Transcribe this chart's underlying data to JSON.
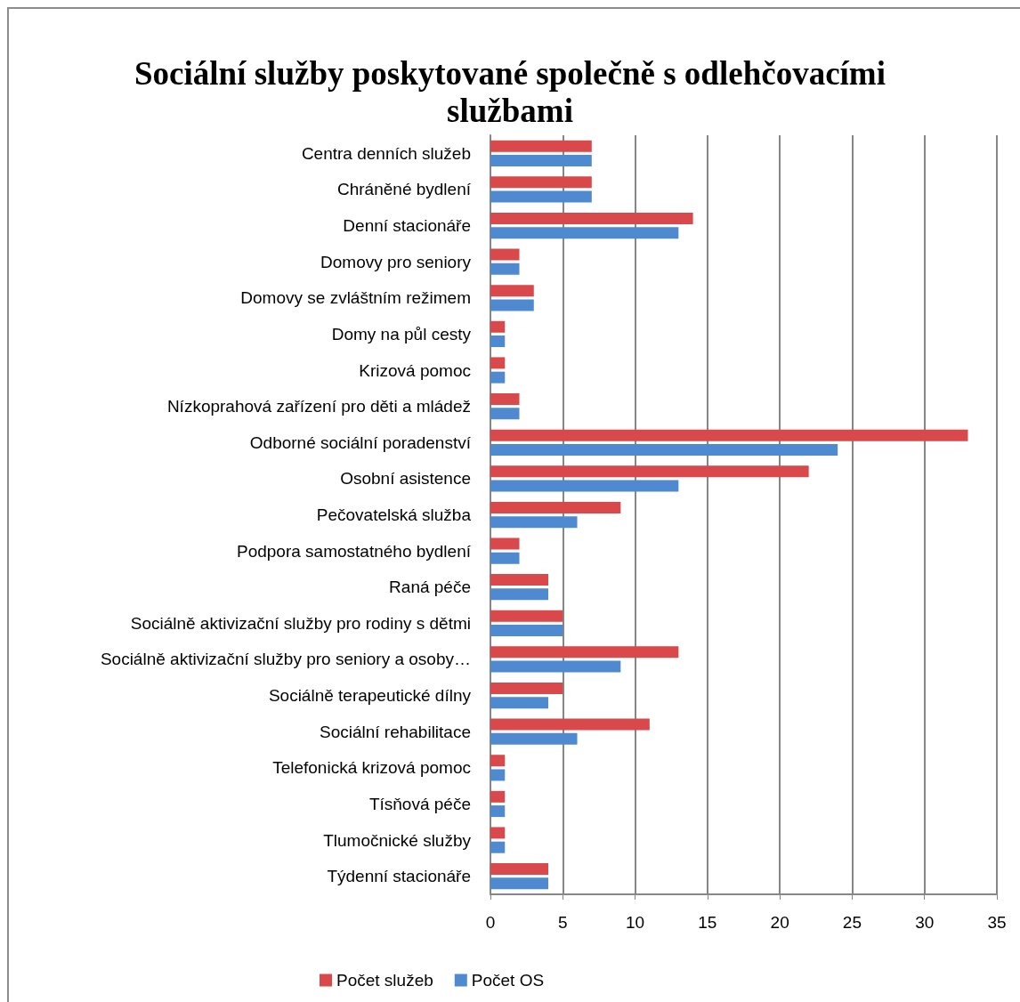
{
  "chart_data": {
    "type": "bar",
    "orientation": "horizontal",
    "title": "Sociální služby poskytované společně s odlehčovacími službami",
    "categories": [
      "Centra denních služeb",
      "Chráněné bydlení",
      "Denní stacionáře",
      "Domovy pro seniory",
      "Domovy se zvláštním režimem",
      "Domy na půl cesty",
      "Krizová pomoc",
      "Nízkoprahová zařízení pro děti a mládež",
      "Odborné sociální poradenství",
      "Osobní asistence",
      "Pečovatelská služba",
      "Podpora samostatného bydlení",
      "Raná péče",
      "Sociálně aktivizační služby pro rodiny s dětmi",
      "Sociálně aktivizační služby pro seniory a osoby…",
      "Sociálně terapeutické dílny",
      "Sociální rehabilitace",
      "Telefonická krizová pomoc",
      "Tísňová péče",
      "Tlumočnické služby",
      "Týdenní stacionáře"
    ],
    "series": [
      {
        "name": "Počet služeb",
        "color": "#d9484a",
        "values": [
          7,
          7,
          14,
          2,
          3,
          1,
          1,
          2,
          33,
          22,
          9,
          2,
          4,
          5,
          13,
          5,
          11,
          1,
          1,
          1,
          4
        ]
      },
      {
        "name": "Počet OS",
        "color": "#4f8ad0",
        "values": [
          7,
          7,
          13,
          2,
          3,
          1,
          1,
          2,
          24,
          13,
          6,
          2,
          4,
          5,
          9,
          4,
          6,
          1,
          1,
          1,
          4
        ]
      }
    ],
    "xlim": [
      0,
      35
    ],
    "xticks": [
      0,
      5,
      10,
      15,
      20,
      25,
      30,
      35
    ],
    "grid": "x",
    "legend": "bottom"
  }
}
